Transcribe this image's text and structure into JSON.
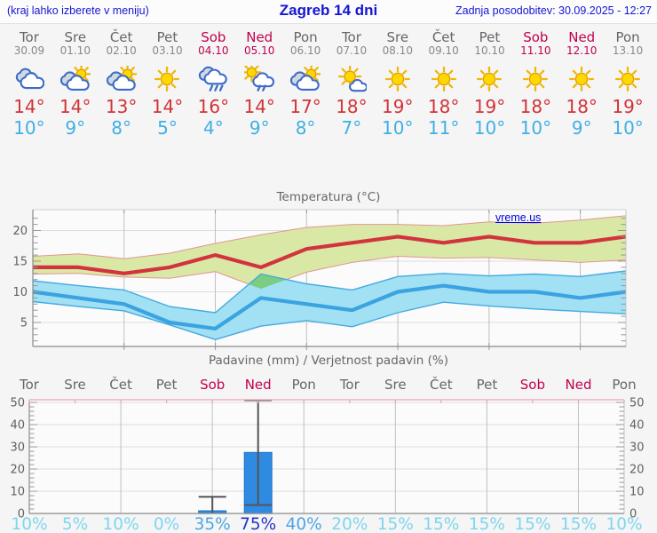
{
  "header": {
    "hint": "(kraj lahko izberete v meniju)",
    "title": "Zagreb 14 dni",
    "updated": "Zadnja posodobitev: 30.09.2025 - 12:27"
  },
  "watermark": "vreme.us",
  "days": [
    {
      "name": "Tor",
      "date": "30.09",
      "weekend": false,
      "icon": "cloudy",
      "high": "14°",
      "low": "10°"
    },
    {
      "name": "Sre",
      "date": "01.10",
      "weekend": false,
      "icon": "partly-cloudy",
      "high": "14°",
      "low": "9°"
    },
    {
      "name": "Čet",
      "date": "02.10",
      "weekend": false,
      "icon": "partly-cloudy",
      "high": "13°",
      "low": "8°"
    },
    {
      "name": "Pet",
      "date": "03.10",
      "weekend": false,
      "icon": "sunny",
      "high": "14°",
      "low": "5°"
    },
    {
      "name": "Sob",
      "date": "04.10",
      "weekend": true,
      "icon": "rain",
      "high": "16°",
      "low": "4°"
    },
    {
      "name": "Ned",
      "date": "05.10",
      "weekend": true,
      "icon": "sun-rain",
      "high": "14°",
      "low": "9°"
    },
    {
      "name": "Pon",
      "date": "06.10",
      "weekend": false,
      "icon": "partly-cloudy",
      "high": "17°",
      "low": "8°"
    },
    {
      "name": "Tor",
      "date": "07.10",
      "weekend": false,
      "icon": "mostly-sunny",
      "high": "18°",
      "low": "7°"
    },
    {
      "name": "Sre",
      "date": "08.10",
      "weekend": false,
      "icon": "sunny",
      "high": "19°",
      "low": "10°"
    },
    {
      "name": "Čet",
      "date": "09.10",
      "weekend": false,
      "icon": "sunny",
      "high": "18°",
      "low": "11°"
    },
    {
      "name": "Pet",
      "date": "10.10",
      "weekend": false,
      "icon": "sunny",
      "high": "19°",
      "low": "10°"
    },
    {
      "name": "Sob",
      "date": "11.10",
      "weekend": true,
      "icon": "sunny",
      "high": "18°",
      "low": "10°"
    },
    {
      "name": "Ned",
      "date": "12.10",
      "weekend": true,
      "icon": "sunny",
      "high": "18°",
      "low": "9°"
    },
    {
      "name": "Pon",
      "date": "13.10",
      "weekend": false,
      "icon": "sunny",
      "high": "19°",
      "low": "10°"
    }
  ],
  "chart_data": [
    {
      "type": "line",
      "title": "Temperatura (°C)",
      "categories": [
        "Tor 30.09",
        "Sre 01.10",
        "Čet 02.10",
        "Pet 03.10",
        "Sob 04.10",
        "Ned 05.10",
        "Pon 06.10",
        "Tor 07.10",
        "Sre 08.10",
        "Čet 09.10",
        "Pet 10.10",
        "Sob 11.10",
        "Ned 12.10",
        "Pon 13.10"
      ],
      "yticks": [
        5,
        10,
        15,
        20
      ],
      "ylim": [
        1,
        23
      ],
      "grid": true,
      "series": [
        {
          "name": "high",
          "values": [
            14,
            14,
            13,
            14,
            16,
            14,
            17,
            18,
            19,
            18,
            19,
            18,
            18,
            19
          ]
        },
        {
          "name": "low",
          "values": [
            10,
            9,
            8,
            5,
            4,
            9,
            8,
            7,
            10,
            11,
            10,
            10,
            9,
            10
          ]
        },
        {
          "name": "high_band_upper",
          "values": [
            15.8,
            16.2,
            15.4,
            16.3,
            17.9,
            19.3,
            20.5,
            21.0,
            21.0,
            20.8,
            21.4,
            21.2,
            21.7,
            22.4
          ]
        },
        {
          "name": "high_band_lower",
          "values": [
            12.9,
            13.0,
            12.4,
            12.2,
            13.3,
            10.5,
            13.2,
            14.8,
            15.8,
            15.5,
            15.6,
            15.2,
            14.8,
            15.2
          ]
        },
        {
          "name": "low_band_upper",
          "values": [
            11.8,
            11.0,
            10.3,
            7.6,
            6.6,
            12.9,
            11.3,
            10.3,
            12.5,
            13.0,
            12.6,
            12.9,
            12.5,
            13.4
          ]
        },
        {
          "name": "low_band_lower",
          "values": [
            8.4,
            7.6,
            6.9,
            4.6,
            2.2,
            4.4,
            5.3,
            4.3,
            6.6,
            8.3,
            7.7,
            7.2,
            6.8,
            6.4
          ]
        }
      ]
    },
    {
      "type": "bar",
      "title": "Padavine (mm) / Verjetnost padavin (%)",
      "categories": [
        "Tor",
        "Sre",
        "Čet",
        "Pet",
        "Sob",
        "Ned",
        "Pon",
        "Tor",
        "Sre",
        "Čet",
        "Pet",
        "Sob",
        "Ned",
        "Pon"
      ],
      "values": [
        0,
        0,
        0,
        0,
        1.2,
        27.5,
        0,
        0,
        0,
        0,
        0,
        0,
        0,
        0
      ],
      "whisker_low": [
        null,
        null,
        null,
        null,
        0,
        3.8,
        null,
        null,
        null,
        null,
        null,
        null,
        null,
        null
      ],
      "whisker_high": [
        null,
        null,
        null,
        null,
        7.5,
        51,
        null,
        null,
        null,
        null,
        null,
        null,
        null,
        null
      ],
      "probability_percent": [
        10,
        5,
        10,
        0,
        35,
        75,
        40,
        20,
        15,
        15,
        15,
        15,
        15,
        10
      ],
      "yticks": [
        0,
        10,
        20,
        30,
        40,
        50
      ],
      "ylim": [
        0,
        52
      ],
      "grid": true
    }
  ],
  "colors": {
    "link_blue": "#1515d6",
    "weekday": "#666666",
    "date": "#888888",
    "weekend": "#c1004f",
    "temp_high": "#d23238",
    "temp_low": "#3fafe6",
    "line_high": "#d2333f",
    "band_high_fill": "#d9e8a4",
    "band_high_edge": "#e49494",
    "line_low": "#3aa3e0",
    "band_low_fill": "#a2e0f3",
    "band_low_edge": "#44a9e0",
    "band_overlap": "#7ccc82",
    "bar_fill": "#2f8be2",
    "bar_edge": "#1a72c8",
    "whisker": "#555555",
    "precip_top": "#eda4ba",
    "prob_low": "#7ed5f0",
    "prob_mid": "#4da5e6",
    "prob_high": "#2233c8",
    "axis": "#8a8a8a",
    "grid_h": "#dcdcdc",
    "grid_v": "#c0c0c0",
    "tick": "#999999",
    "chart_text": "#606060"
  }
}
